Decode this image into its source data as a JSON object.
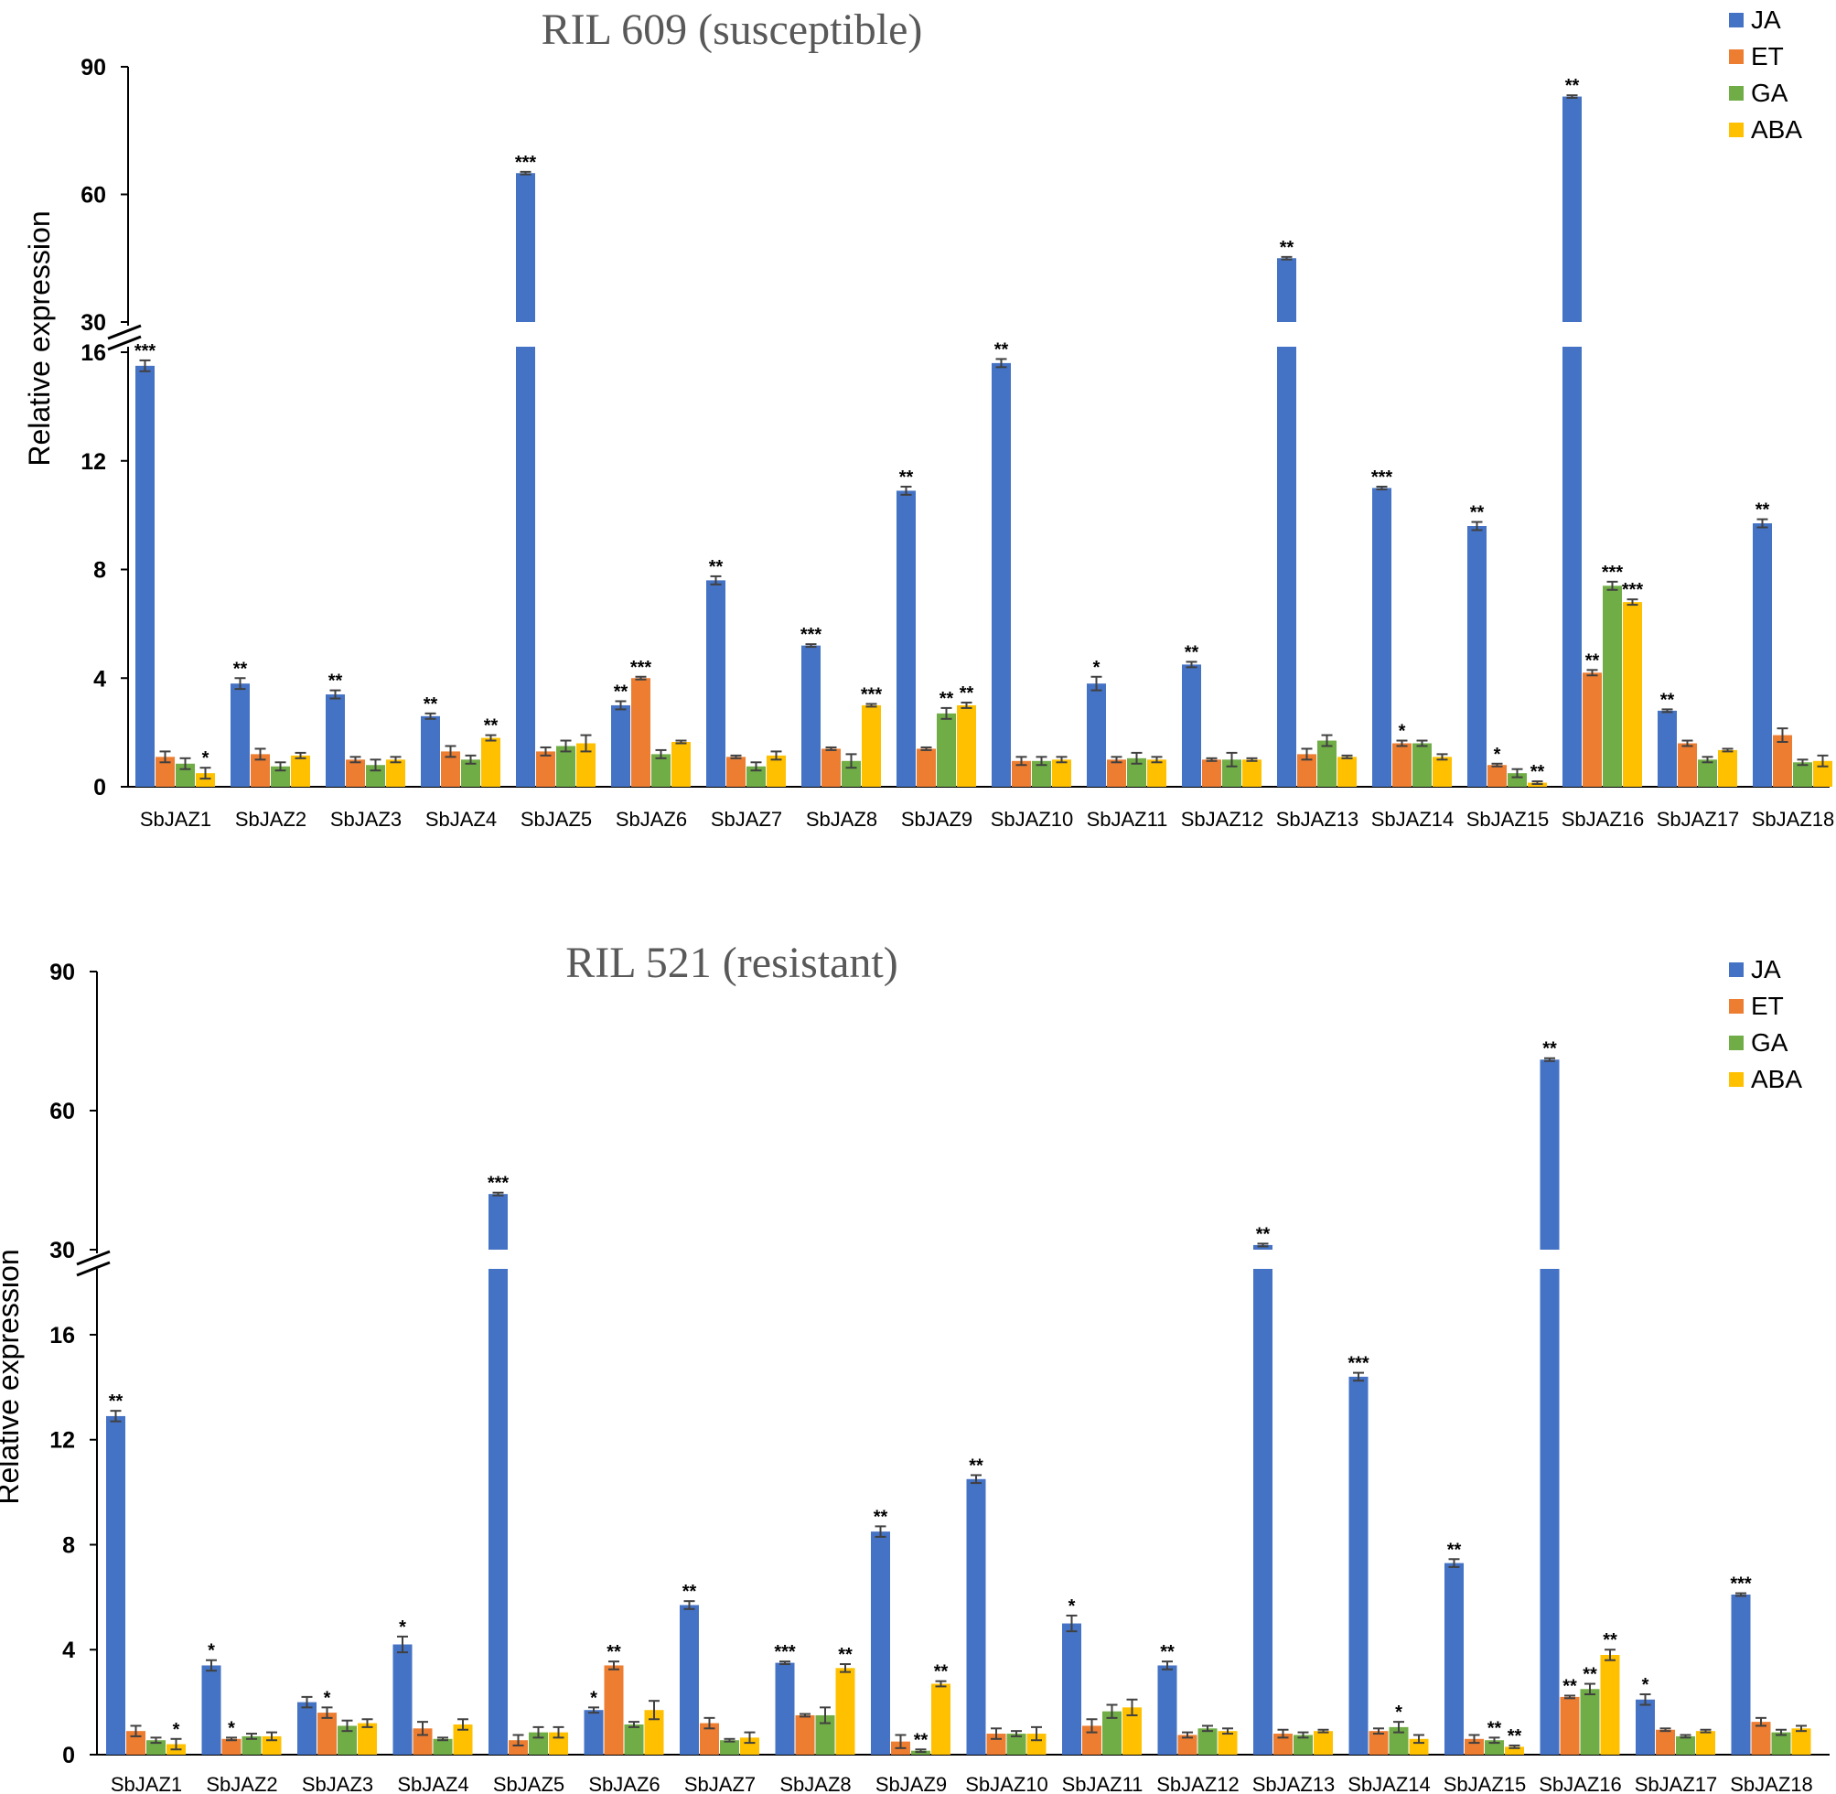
{
  "colors": {
    "JA": "#4472C4",
    "ET": "#ED7D31",
    "GA": "#70AD47",
    "ABA": "#FFC000",
    "axis": "#000000",
    "error": "#404040"
  },
  "chart_data": [
    {
      "type": "bar",
      "title": "RIL 609 (susceptible)",
      "ylabel": "Relative expression",
      "xlabel": "",
      "y_axis_break": {
        "lower_range": [
          0,
          16
        ],
        "upper_range": [
          30,
          90
        ],
        "lower_ticks": [
          "0",
          "4",
          "8",
          "12",
          "16"
        ],
        "upper_ticks": [
          "30",
          "60",
          "90"
        ]
      },
      "legend": {
        "placement": "top-right",
        "entries": [
          "JA",
          "ET",
          "GA",
          "ABA"
        ]
      },
      "categories": [
        "SbJAZ1",
        "SbJAZ2",
        "SbJAZ3",
        "SbJAZ4",
        "SbJAZ5",
        "SbJAZ6",
        "SbJAZ7",
        "SbJAZ8",
        "SbJAZ9",
        "SbJAZ10",
        "SbJAZ11",
        "SbJAZ12",
        "SbJAZ13",
        "SbJAZ14",
        "SbJAZ15",
        "SbJAZ16",
        "SbJAZ17",
        "SbJAZ18"
      ],
      "series": [
        {
          "name": "JA",
          "values": [
            15.5,
            3.8,
            3.4,
            2.6,
            65,
            3.0,
            7.6,
            5.2,
            10.9,
            15.6,
            3.8,
            4.5,
            45,
            11.0,
            9.6,
            83,
            2.8,
            9.7
          ],
          "errors": [
            0.2,
            0.2,
            0.15,
            0.1,
            0.3,
            0.15,
            0.15,
            0.05,
            0.15,
            0.15,
            0.25,
            0.1,
            0.3,
            0.05,
            0.15,
            0.3,
            0.05,
            0.15
          ],
          "sig": [
            "***",
            "**",
            "**",
            "**",
            "***",
            "**",
            "**",
            "***",
            "**",
            "**",
            "*",
            "**",
            "**",
            "***",
            "**",
            "**",
            "**",
            "**"
          ]
        },
        {
          "name": "ET",
          "values": [
            1.1,
            1.2,
            1.0,
            1.3,
            1.3,
            4.0,
            1.1,
            1.4,
            1.4,
            0.95,
            1.0,
            1.0,
            1.2,
            1.6,
            0.8,
            4.2,
            1.6,
            1.9
          ],
          "errors": [
            0.2,
            0.2,
            0.1,
            0.2,
            0.15,
            0.05,
            0.05,
            0.05,
            0.05,
            0.15,
            0.1,
            0.05,
            0.2,
            0.1,
            0.05,
            0.1,
            0.1,
            0.25
          ],
          "sig": [
            "",
            "",
            "",
            "",
            "",
            "***",
            "",
            "",
            "",
            "",
            "",
            "",
            "",
            "*",
            "*",
            "**",
            "",
            ""
          ]
        },
        {
          "name": "GA",
          "values": [
            0.85,
            0.75,
            0.8,
            1.0,
            1.5,
            1.2,
            0.75,
            0.95,
            2.7,
            0.95,
            1.05,
            1.0,
            1.7,
            1.6,
            0.5,
            7.4,
            1.0,
            0.9
          ],
          "errors": [
            0.2,
            0.15,
            0.2,
            0.15,
            0.2,
            0.15,
            0.15,
            0.25,
            0.2,
            0.15,
            0.2,
            0.25,
            0.2,
            0.1,
            0.15,
            0.15,
            0.1,
            0.1
          ],
          "sig": [
            "",
            "",
            "",
            "",
            "",
            "",
            "",
            "",
            "**",
            "",
            "",
            "",
            "",
            "",
            "",
            "***",
            "",
            ""
          ]
        },
        {
          "name": "ABA",
          "values": [
            0.5,
            1.15,
            1.0,
            1.8,
            1.6,
            1.65,
            1.15,
            3.0,
            3.0,
            1.0,
            1.0,
            1.0,
            1.1,
            1.1,
            0.15,
            6.8,
            1.35,
            0.95
          ],
          "errors": [
            0.2,
            0.1,
            0.1,
            0.1,
            0.3,
            0.05,
            0.15,
            0.05,
            0.1,
            0.1,
            0.1,
            0.05,
            0.05,
            0.1,
            0.05,
            0.1,
            0.05,
            0.2
          ],
          "sig": [
            "*",
            "",
            "",
            "**",
            "",
            "",
            "",
            "***",
            "**",
            "",
            "",
            "",
            "",
            "",
            "**",
            "***",
            "",
            ""
          ]
        }
      ]
    },
    {
      "type": "bar",
      "title": "RIL 521 (resistant)",
      "ylabel": "Relative expression",
      "xlabel": "",
      "y_axis_break": {
        "lower_range": [
          0,
          18
        ],
        "upper_range": [
          30,
          90
        ],
        "lower_ticks": [
          "0",
          "4",
          "8",
          "12",
          "16"
        ],
        "upper_ticks": [
          "30",
          "60",
          "90"
        ]
      },
      "legend": {
        "placement": "top-right",
        "entries": [
          "JA",
          "ET",
          "GA",
          "ABA"
        ]
      },
      "categories": [
        "SbJAZ1",
        "SbJAZ2",
        "SbJAZ3",
        "SbJAZ4",
        "SbJAZ5",
        "SbJAZ6",
        "SbJAZ7",
        "SbJAZ8",
        "SbJAZ9",
        "SbJAZ10",
        "SbJAZ11",
        "SbJAZ12",
        "SbJAZ13",
        "SbJAZ14",
        "SbJAZ15",
        "SbJAZ16",
        "SbJAZ17",
        "SbJAZ18"
      ],
      "series": [
        {
          "name": "JA",
          "values": [
            12.9,
            3.4,
            2.0,
            4.2,
            42,
            1.7,
            5.7,
            3.5,
            8.5,
            10.5,
            5.0,
            3.4,
            31,
            14.4,
            7.3,
            71,
            2.1,
            6.1
          ],
          "errors": [
            0.2,
            0.2,
            0.2,
            0.3,
            0.3,
            0.1,
            0.15,
            0.05,
            0.2,
            0.15,
            0.3,
            0.15,
            0.3,
            0.15,
            0.15,
            0.3,
            0.2,
            0.05
          ],
          "sig": [
            "**",
            "*",
            "",
            "*",
            "***",
            "*",
            "**",
            "***",
            "**",
            "**",
            "*",
            "**",
            "**",
            "***",
            "**",
            "**",
            "*",
            "***"
          ]
        },
        {
          "name": "ET",
          "values": [
            0.9,
            0.6,
            1.6,
            1.0,
            0.55,
            3.4,
            1.2,
            1.5,
            0.5,
            0.8,
            1.1,
            0.75,
            0.8,
            0.9,
            0.6,
            2.2,
            0.95,
            1.25
          ],
          "errors": [
            0.2,
            0.05,
            0.2,
            0.25,
            0.2,
            0.15,
            0.2,
            0.05,
            0.25,
            0.2,
            0.25,
            0.1,
            0.15,
            0.1,
            0.15,
            0.05,
            0.05,
            0.15
          ],
          "sig": [
            "",
            "*",
            "*",
            "",
            "",
            "**",
            "",
            "",
            "",
            "",
            "",
            "",
            "",
            "",
            "",
            "**",
            "",
            ""
          ]
        },
        {
          "name": "GA",
          "values": [
            0.55,
            0.7,
            1.1,
            0.6,
            0.85,
            1.15,
            0.55,
            1.5,
            0.15,
            0.8,
            1.65,
            1.0,
            0.75,
            1.05,
            0.55,
            2.5,
            0.7,
            0.85
          ],
          "errors": [
            0.1,
            0.1,
            0.2,
            0.05,
            0.2,
            0.1,
            0.05,
            0.3,
            0.05,
            0.1,
            0.25,
            0.1,
            0.1,
            0.2,
            0.1,
            0.2,
            0.05,
            0.1
          ],
          "sig": [
            "",
            "",
            "",
            "",
            "",
            "",
            "",
            "",
            "**",
            "",
            "",
            "",
            "",
            "*",
            "**",
            "**",
            "",
            ""
          ]
        },
        {
          "name": "ABA",
          "values": [
            0.4,
            0.7,
            1.2,
            1.15,
            0.85,
            1.7,
            0.65,
            3.3,
            2.7,
            0.8,
            1.8,
            0.9,
            0.9,
            0.6,
            0.3,
            3.8,
            0.9,
            1.0
          ],
          "errors": [
            0.2,
            0.15,
            0.15,
            0.2,
            0.2,
            0.35,
            0.2,
            0.15,
            0.1,
            0.25,
            0.3,
            0.1,
            0.05,
            0.15,
            0.05,
            0.2,
            0.05,
            0.1
          ],
          "sig": [
            "*",
            "",
            "",
            "",
            "",
            "",
            "",
            "**",
            "**",
            "",
            "",
            "",
            "",
            "",
            "**",
            "**",
            "",
            ""
          ]
        }
      ]
    }
  ]
}
